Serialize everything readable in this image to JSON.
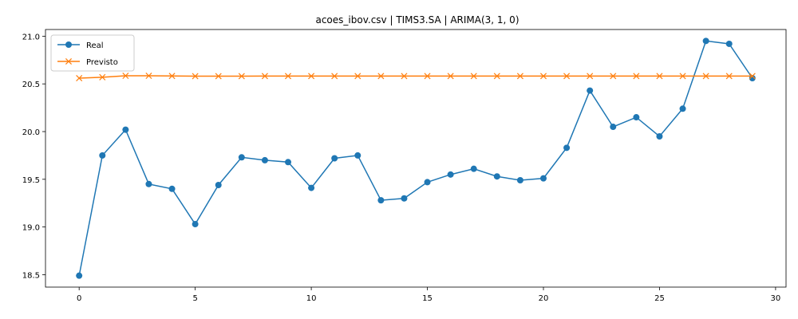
{
  "chart_data": {
    "type": "line",
    "title": "acoes_ibov.csv | TIMS3.SA | ARIMA(3, 1, 0)",
    "xlabel": "",
    "ylabel": "",
    "xlim": [
      -1.45,
      30.45
    ],
    "ylim": [
      18.37,
      21.07
    ],
    "x": [
      0,
      1,
      2,
      3,
      4,
      5,
      6,
      7,
      8,
      9,
      10,
      11,
      12,
      13,
      14,
      15,
      16,
      17,
      18,
      19,
      20,
      21,
      22,
      23,
      24,
      25,
      26,
      27,
      28,
      29
    ],
    "xticks": [
      0,
      5,
      10,
      15,
      20,
      25,
      30
    ],
    "xtick_labels": [
      "0",
      "5",
      "10",
      "15",
      "20",
      "25",
      "30"
    ],
    "yticks": [
      18.5,
      19.0,
      19.5,
      20.0,
      20.5,
      21.0
    ],
    "ytick_labels": [
      "18.5",
      "19.0",
      "19.5",
      "20.0",
      "20.5",
      "21.0"
    ],
    "grid": false,
    "legend_position": "top-left",
    "series": [
      {
        "name": "Real",
        "color": "#1f77b4",
        "marker": "circle",
        "values": [
          18.49,
          19.75,
          20.02,
          19.45,
          19.4,
          19.03,
          19.44,
          19.73,
          19.7,
          19.68,
          19.41,
          19.72,
          19.75,
          19.28,
          19.3,
          19.47,
          19.55,
          19.61,
          19.53,
          19.49,
          19.51,
          19.83,
          20.43,
          20.05,
          20.15,
          19.95,
          20.24,
          20.95,
          20.92,
          20.56
        ]
      },
      {
        "name": "Previsto",
        "color": "#ff7f0e",
        "marker": "x",
        "values": [
          20.56,
          20.57,
          20.585,
          20.585,
          20.583,
          20.581,
          20.581,
          20.581,
          20.582,
          20.582,
          20.582,
          20.582,
          20.582,
          20.582,
          20.582,
          20.582,
          20.582,
          20.582,
          20.582,
          20.582,
          20.582,
          20.582,
          20.582,
          20.582,
          20.582,
          20.582,
          20.582,
          20.582,
          20.582,
          20.582
        ]
      }
    ]
  }
}
